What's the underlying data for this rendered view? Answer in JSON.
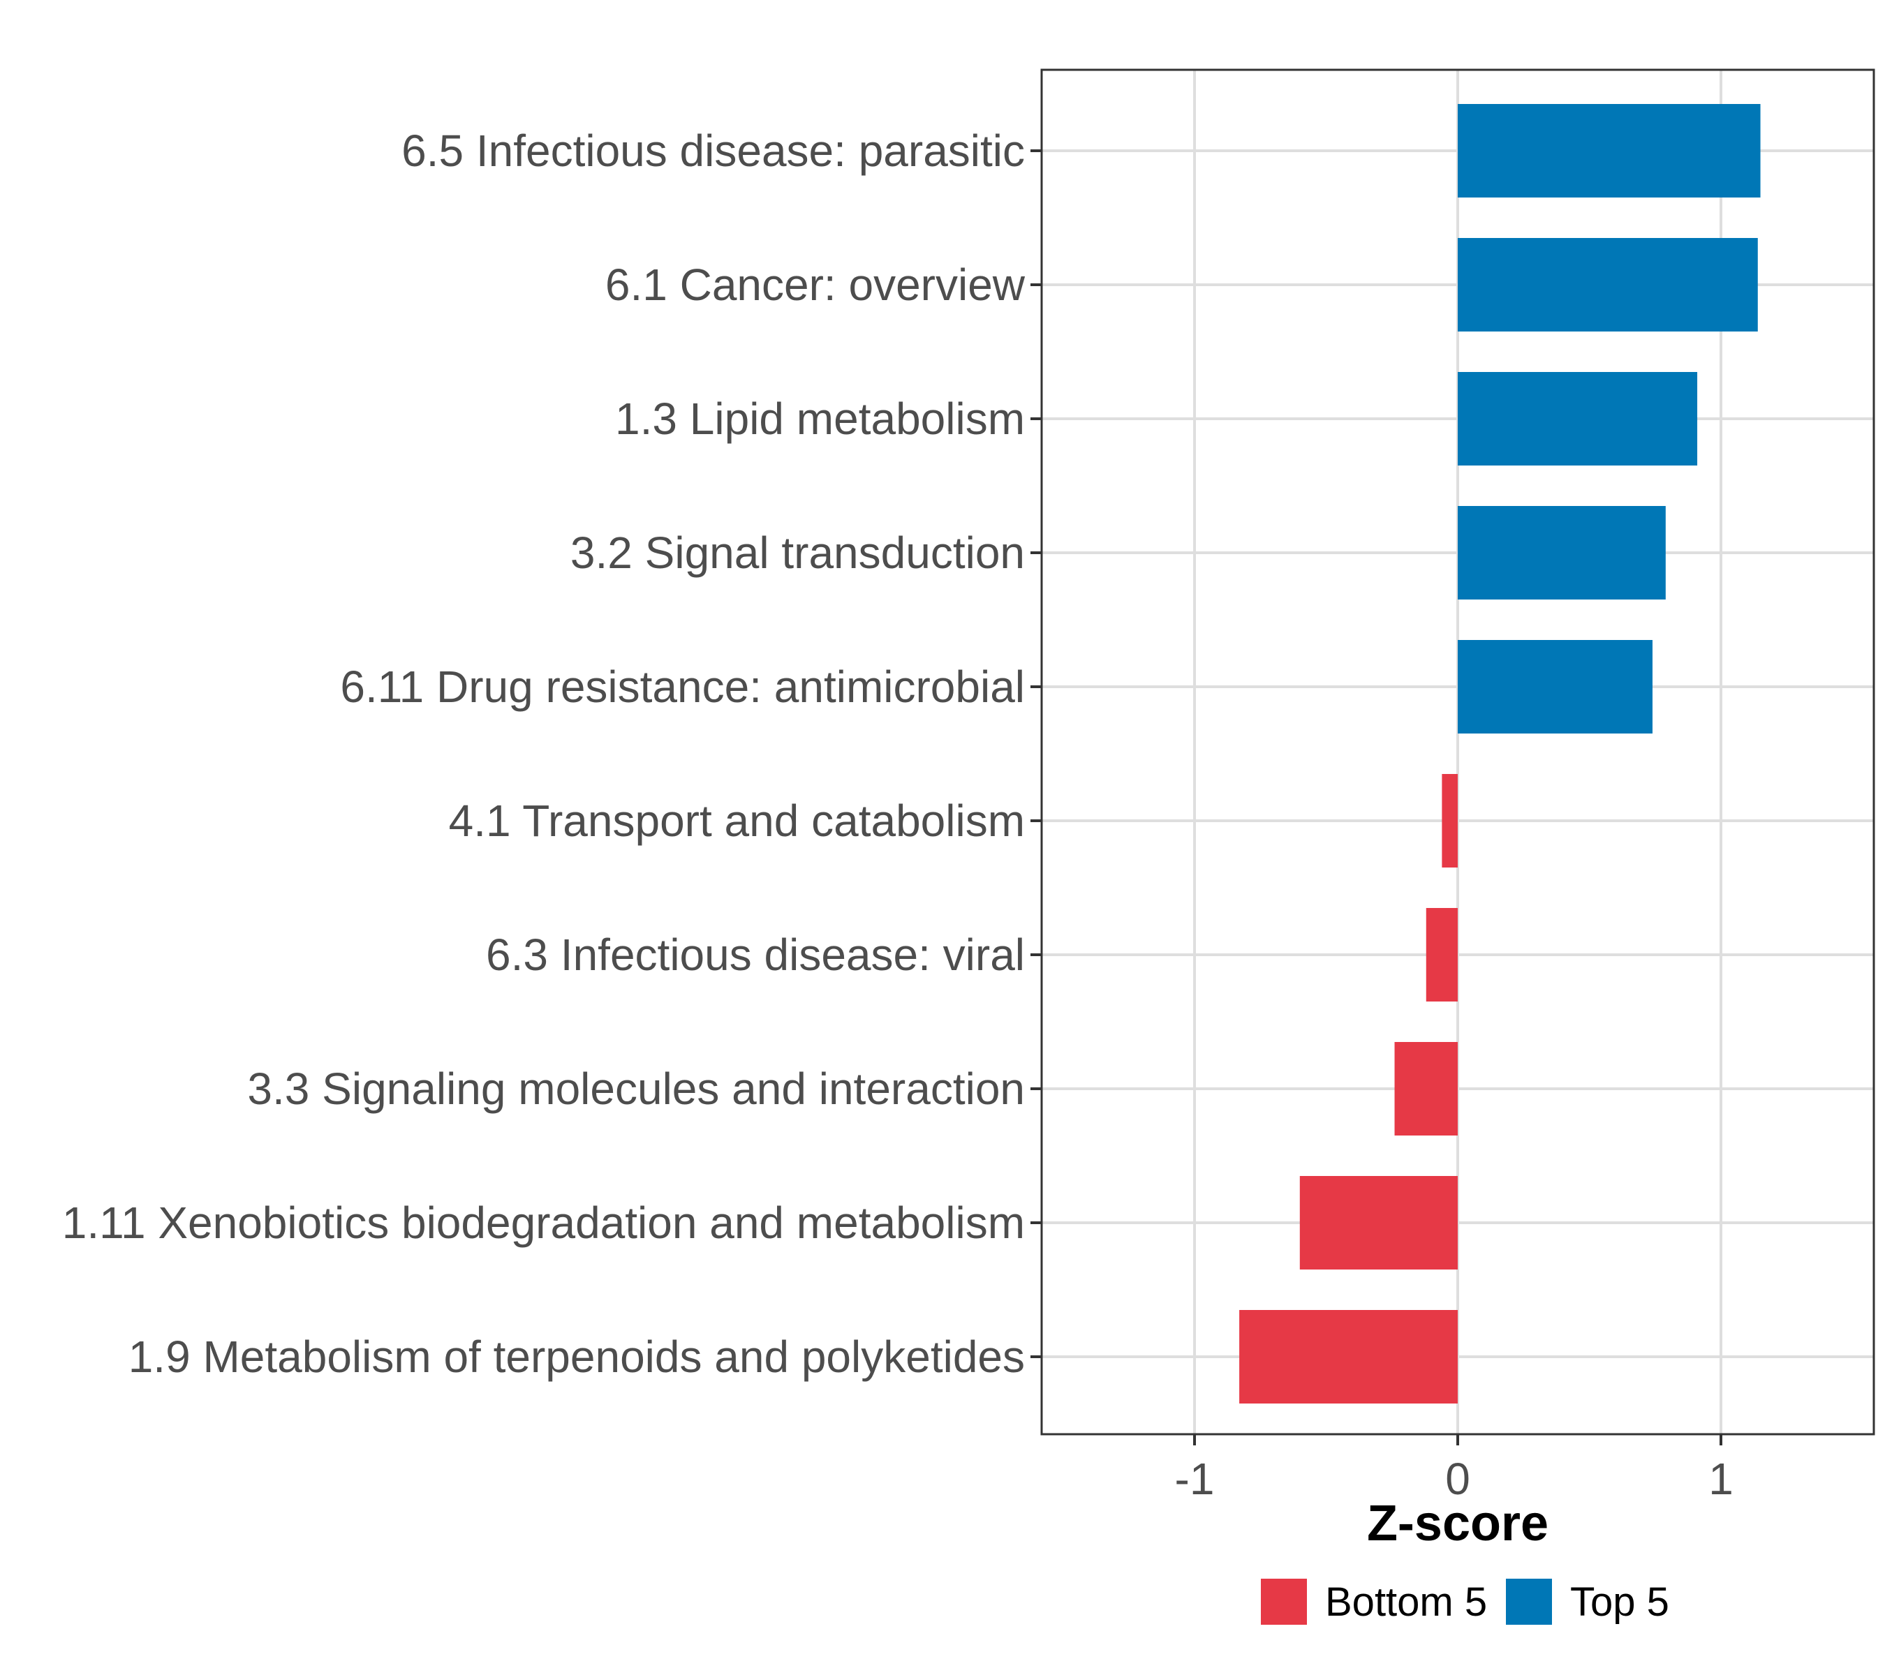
{
  "chart_data": {
    "type": "bar",
    "orientation": "horizontal",
    "title": "",
    "xlabel": "Z-score",
    "ylabel": "",
    "xlim": [
      -1.6,
      1.6
    ],
    "xticks": [
      -1,
      0,
      1
    ],
    "xtick_labels": [
      "-1",
      "0",
      "1"
    ],
    "grid": true,
    "legend_position": "bottom",
    "categories": [
      "6.5 Infectious disease: parasitic",
      "6.1 Cancer: overview",
      "1.3 Lipid metabolism",
      "3.2 Signal transduction",
      "6.11 Drug resistance: antimicrobial",
      "4.1 Transport and catabolism",
      "6.3 Infectious disease: viral",
      "3.3 Signaling molecules and interaction",
      "1.11 Xenobiotics biodegradation and metabolism",
      "1.9 Metabolism of terpenoids and polyketides"
    ],
    "values": [
      1.15,
      1.14,
      0.91,
      0.79,
      0.74,
      -0.06,
      -0.12,
      -0.24,
      -0.6,
      -0.83
    ],
    "groups": [
      "Top 5",
      "Top 5",
      "Top 5",
      "Top 5",
      "Top 5",
      "Bottom 5",
      "Bottom 5",
      "Bottom 5",
      "Bottom 5",
      "Bottom 5"
    ],
    "legend": [
      {
        "label": "Bottom 5",
        "color": "#e63946"
      },
      {
        "label": "Top 5",
        "color": "#0077b6"
      }
    ]
  }
}
